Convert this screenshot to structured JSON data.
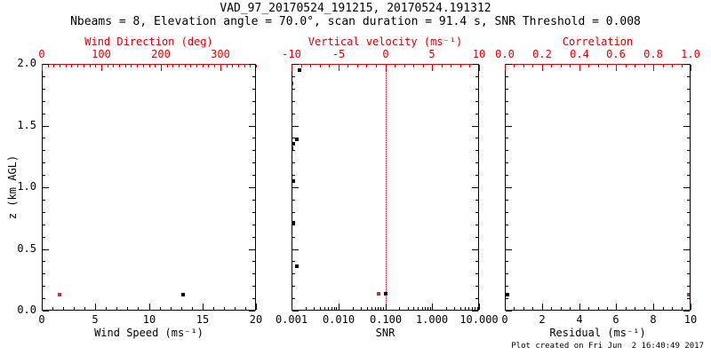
{
  "title": "VAD_97_20170524_191215, 20170524.191312",
  "subtitle": "Nbeams = 8, Elevation angle = 70.0°, scan duration = 91.4 s, SNR Threshold = 0.008",
  "footer": "Plot created on Fri Jun  2 16:40:49 2017",
  "colors": {
    "axis_red": "#dd0000",
    "marker_red": "#b03b2b",
    "ink": "#000000",
    "background": "#ffffff"
  },
  "chart_data": [
    {
      "type": "scatter",
      "id": "wind-panel",
      "x_bottom": {
        "label": "Wind Speed (ms⁻¹)",
        "scale": "linear",
        "min": 0,
        "max": 20,
        "major_values": [
          0,
          5,
          10,
          15,
          20
        ],
        "major_labels": [
          "0",
          "5",
          "10",
          "15",
          "20"
        ],
        "minor_step": 1,
        "color": "black"
      },
      "x_top": {
        "label": "Wind Direction (deg)",
        "scale": "linear",
        "min": 0,
        "max": 360,
        "major_values": [
          0,
          100,
          200,
          300
        ],
        "major_labels": [
          "0",
          "100",
          "200",
          "300"
        ],
        "minor_step": 10,
        "color": "red"
      },
      "y": {
        "label": "z (km AGL)",
        "min": 0,
        "max": 2,
        "major_values": [
          0,
          0.5,
          1,
          1.5,
          2
        ],
        "major_labels": [
          "0.0",
          "0.5",
          "1.0",
          "1.5",
          "2.0"
        ],
        "minor_step": 0.1,
        "labeled": true
      },
      "series": [
        {
          "name": "wind-speed",
          "axis": "bottom",
          "color": "black",
          "points": [
            [
              13.2,
              0.13
            ]
          ]
        },
        {
          "name": "wind-direction",
          "axis": "top",
          "color": "red",
          "points": [
            [
              30,
              0.13
            ]
          ]
        }
      ]
    },
    {
      "type": "scatter",
      "id": "snr-panel",
      "x_bottom": {
        "label": "SNR",
        "scale": "log",
        "min": 0.001,
        "max": 10,
        "major_values": [
          0.001,
          0.01,
          0.1,
          1,
          10
        ],
        "major_labels": [
          "0.001",
          "0.010",
          "0.100",
          "1.000",
          "10.000"
        ],
        "color": "black"
      },
      "x_top": {
        "label": "Vertical velocity (ms⁻¹)",
        "scale": "linear",
        "min": -10,
        "max": 10,
        "major_values": [
          -10,
          -5,
          0,
          5,
          10
        ],
        "major_labels": [
          "-10",
          "-5",
          "0",
          "5",
          "10"
        ],
        "minor_step": 1,
        "color": "red"
      },
      "y": {
        "label": "",
        "min": 0,
        "max": 2,
        "major_values": [
          0,
          0.5,
          1,
          1.5,
          2
        ],
        "major_labels": [
          "0.0",
          "0.5",
          "1.0",
          "1.5",
          "2.0"
        ],
        "minor_step": 0.1,
        "labeled": false
      },
      "refline": {
        "axis": "top",
        "value": 0,
        "style": "dotted",
        "color": "red"
      },
      "series": [
        {
          "name": "snr",
          "axis": "bottom",
          "color": "black",
          "points": [
            [
              0.0015,
              1.95
            ],
            [
              0.001,
              1.84
            ],
            [
              0.0013,
              1.39
            ],
            [
              0.0011,
              1.35
            ],
            [
              0.001,
              1.32
            ],
            [
              0.0011,
              1.05
            ],
            [
              0.0011,
              0.71
            ],
            [
              0.0013,
              0.36
            ],
            [
              0.1,
              0.14
            ]
          ]
        },
        {
          "name": "vertical-velocity",
          "axis": "top",
          "color": "red",
          "points": [
            [
              -0.7,
              0.14
            ]
          ]
        }
      ]
    },
    {
      "type": "scatter",
      "id": "residual-panel",
      "x_bottom": {
        "label": "Residual (ms⁻¹)",
        "scale": "linear",
        "min": 0,
        "max": 10,
        "major_values": [
          0,
          2,
          4,
          6,
          8,
          10
        ],
        "major_labels": [
          "0",
          "2",
          "4",
          "6",
          "8",
          "10"
        ],
        "minor_step": 0.5,
        "color": "black"
      },
      "x_top": {
        "label": "Correlation",
        "scale": "linear",
        "min": 0,
        "max": 1,
        "major_values": [
          0,
          0.2,
          0.4,
          0.6,
          0.8,
          1
        ],
        "major_labels": [
          "0.0",
          "0.2",
          "0.4",
          "0.6",
          "0.8",
          "1.0"
        ],
        "minor_step": 0.05,
        "color": "red"
      },
      "y": {
        "label": "",
        "min": 0,
        "max": 2,
        "major_values": [
          0,
          0.5,
          1,
          1.5,
          2
        ],
        "major_labels": [
          "0.0",
          "0.5",
          "1.0",
          "1.5",
          "2.0"
        ],
        "minor_step": 0.1,
        "labeled": false
      },
      "series": [
        {
          "name": "residual",
          "axis": "bottom",
          "color": "black",
          "points": [
            [
              0.15,
              0.13
            ]
          ]
        },
        {
          "name": "correlation",
          "axis": "top",
          "color": "red",
          "points": [
            [
              0.99,
              0.13
            ]
          ]
        }
      ]
    }
  ]
}
